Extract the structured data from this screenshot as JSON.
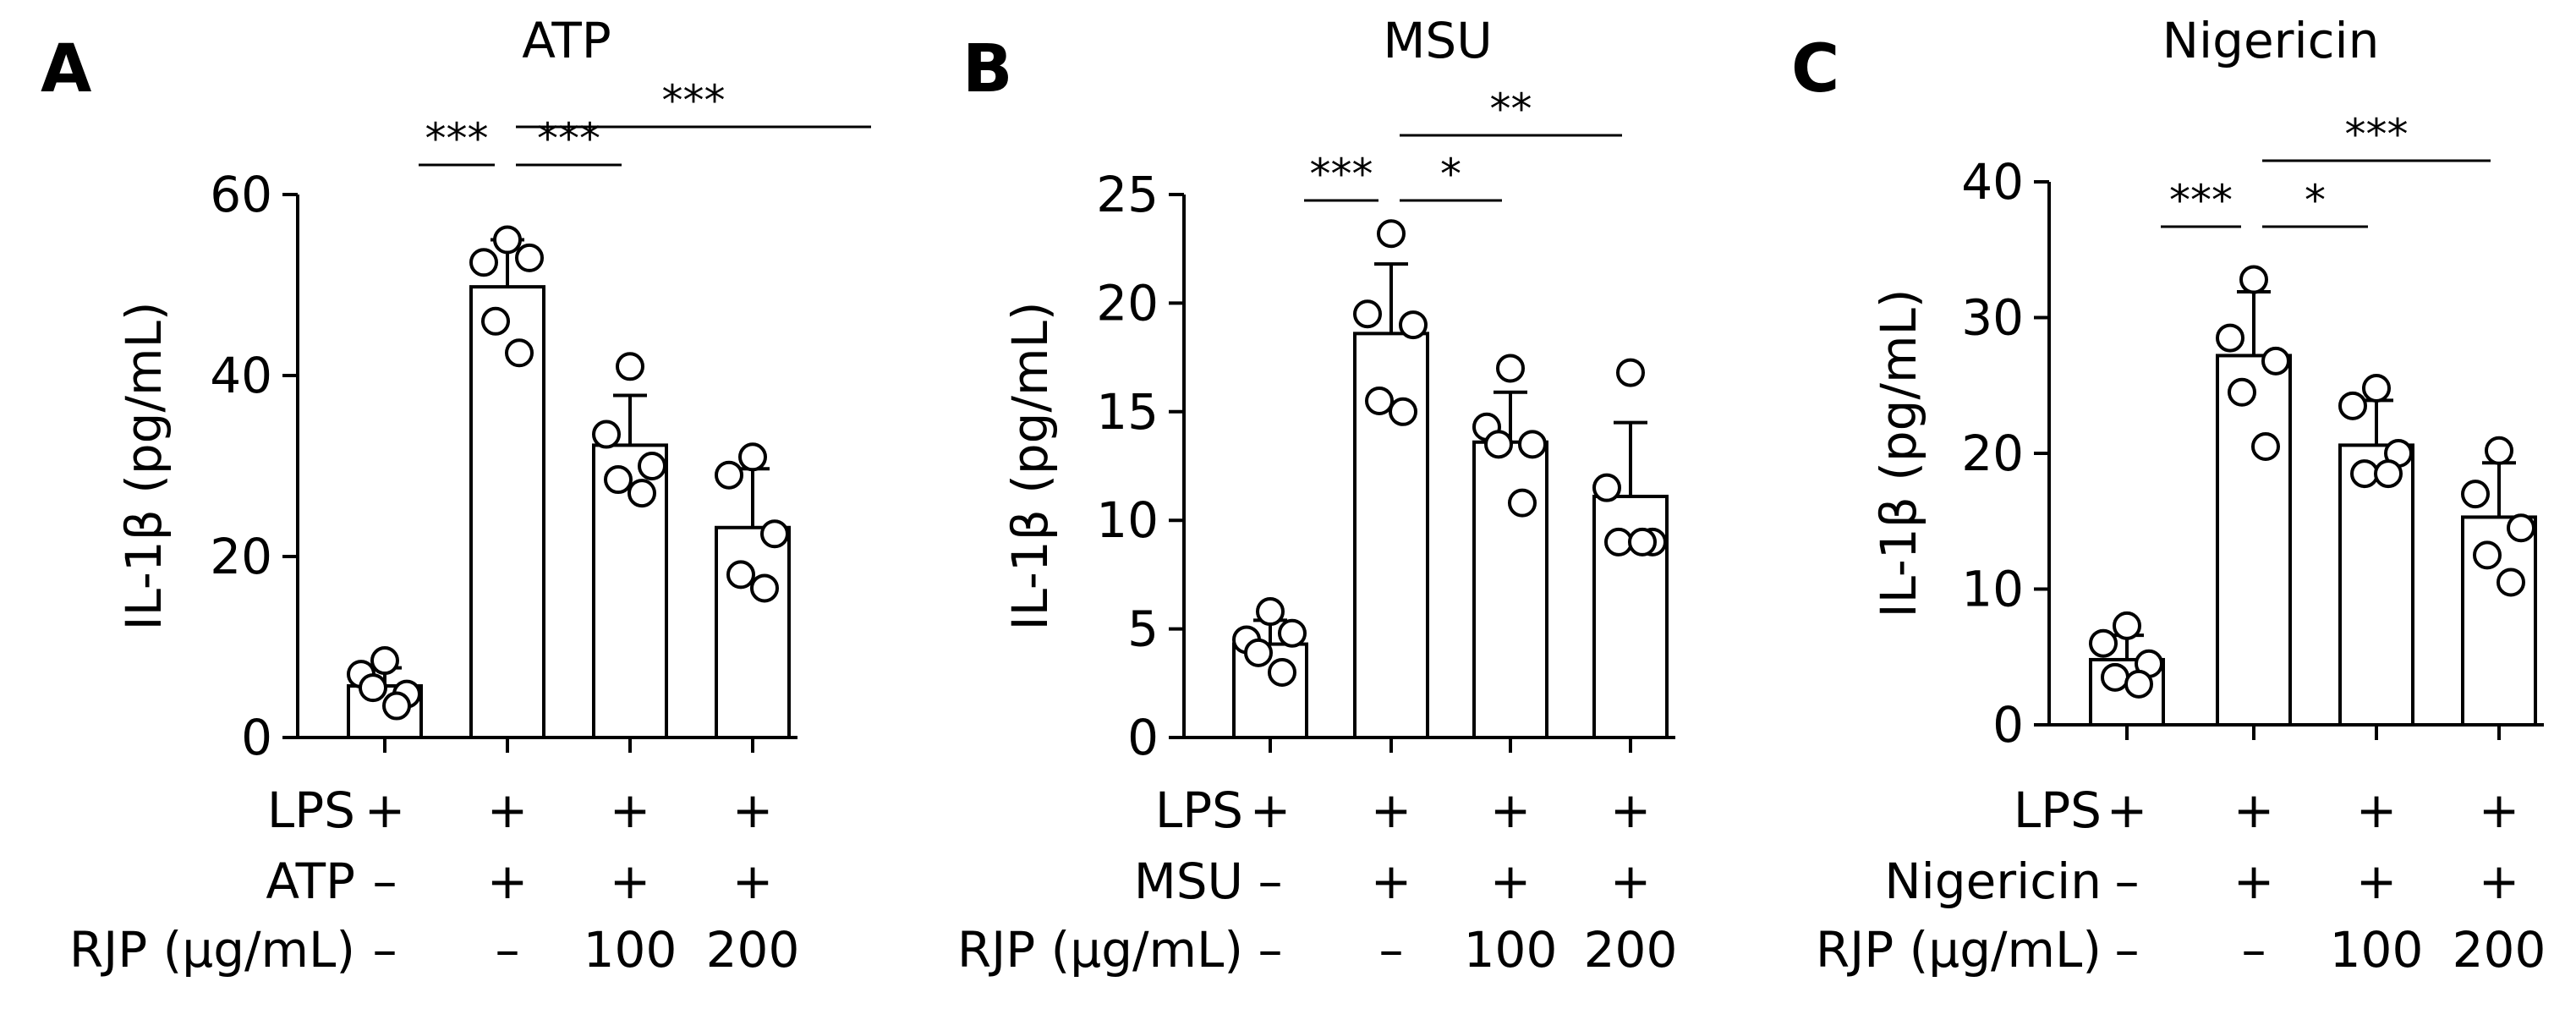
{
  "chart_data": [
    {
      "type": "bar",
      "panel_label": "A",
      "title": "ATP",
      "ylabel": "IL-1β (pg/mL)",
      "ylim": [
        0,
        60
      ],
      "yticks": [
        "0",
        "20",
        "40",
        "60"
      ],
      "series": [
        {
          "name": "group 1",
          "mean": 5.7,
          "sd": 2.0,
          "points": [
            8.5,
            7.0,
            4.8,
            5.5,
            3.5
          ]
        },
        {
          "name": "group 2",
          "mean": 49.8,
          "sd": 5.2,
          "points": [
            55.0,
            52.5,
            53.0,
            46.0,
            42.5
          ]
        },
        {
          "name": "group 3",
          "mean": 32.3,
          "sd": 5.5,
          "points": [
            41.0,
            33.5,
            30.0,
            28.5,
            27.0
          ]
        },
        {
          "name": "group 4",
          "mean": 23.2,
          "sd": 6.5,
          "points": [
            31.0,
            29.0,
            22.5,
            18.0,
            16.5
          ]
        }
      ],
      "condition_rows": [
        {
          "label": "LPS",
          "values": [
            "+",
            "+",
            "+",
            "+"
          ]
        },
        {
          "label": "ATP",
          "values": [
            "–",
            "+",
            "+",
            "+"
          ]
        },
        {
          "label": "RJP (μg/mL)",
          "values": [
            "–",
            "–",
            "100",
            "200"
          ]
        }
      ],
      "significance": [
        {
          "from": 1,
          "to": 2,
          "label": "***"
        },
        {
          "from": 2,
          "to": 3,
          "label": "***"
        },
        {
          "from": 2,
          "to": 4,
          "label": "***"
        }
      ]
    },
    {
      "type": "bar",
      "panel_label": "B",
      "title": "MSU",
      "ylabel": "IL-1β (pg/mL)",
      "ylim": [
        0,
        25
      ],
      "yticks": [
        "0",
        "5",
        "10",
        "15",
        "20",
        "25"
      ],
      "series": [
        {
          "name": "group 1",
          "mean": 4.3,
          "sd": 1.1,
          "points": [
            5.8,
            4.5,
            4.8,
            3.9,
            3.0
          ]
        },
        {
          "name": "group 2",
          "mean": 18.6,
          "sd": 3.2,
          "points": [
            23.2,
            19.5,
            19.0,
            15.5,
            15.0
          ]
        },
        {
          "name": "group 3",
          "mean": 13.6,
          "sd": 2.3,
          "points": [
            17.0,
            14.3,
            13.5,
            13.5,
            10.8
          ]
        },
        {
          "name": "group 4",
          "mean": 11.1,
          "sd": 3.4,
          "points": [
            16.8,
            11.5,
            9.0,
            9.0,
            9.0
          ]
        }
      ],
      "condition_rows": [
        {
          "label": "LPS",
          "values": [
            "+",
            "+",
            "+",
            "+"
          ]
        },
        {
          "label": "MSU",
          "values": [
            "–",
            "+",
            "+",
            "+"
          ]
        },
        {
          "label": "RJP (μg/mL)",
          "values": [
            "–",
            "–",
            "100",
            "200"
          ]
        }
      ],
      "significance": [
        {
          "from": 1,
          "to": 2,
          "label": "***"
        },
        {
          "from": 2,
          "to": 3,
          "label": "*"
        },
        {
          "from": 2,
          "to": 4,
          "label": "**"
        }
      ]
    },
    {
      "type": "bar",
      "panel_label": "C",
      "title": "Nigericin",
      "ylabel": "IL-1β (pg/mL)",
      "ylim": [
        0,
        40
      ],
      "yticks": [
        "0",
        "10",
        "20",
        "30",
        "40"
      ],
      "series": [
        {
          "name": "group 1",
          "mean": 4.8,
          "sd": 1.8,
          "points": [
            7.3,
            6.0,
            4.5,
            3.5,
            3.0
          ]
        },
        {
          "name": "group 2",
          "mean": 27.2,
          "sd": 4.7,
          "points": [
            32.8,
            28.5,
            26.8,
            24.5,
            20.5
          ]
        },
        {
          "name": "group 3",
          "mean": 20.6,
          "sd": 3.3,
          "points": [
            24.8,
            23.5,
            20.0,
            18.5,
            18.5
          ]
        },
        {
          "name": "group 4",
          "mean": 15.3,
          "sd": 4.0,
          "points": [
            20.2,
            17.0,
            14.5,
            12.5,
            10.5
          ]
        }
      ],
      "condition_rows": [
        {
          "label": "LPS",
          "values": [
            "+",
            "+",
            "+",
            "+"
          ]
        },
        {
          "label": "Nigericin",
          "values": [
            "–",
            "+",
            "+",
            "+"
          ]
        },
        {
          "label": "RJP (μg/mL)",
          "values": [
            "–",
            "–",
            "100",
            "200"
          ]
        }
      ],
      "significance": [
        {
          "from": 1,
          "to": 2,
          "label": "***"
        },
        {
          "from": 2,
          "to": 3,
          "label": "*"
        },
        {
          "from": 2,
          "to": 4,
          "label": "***"
        }
      ]
    }
  ]
}
